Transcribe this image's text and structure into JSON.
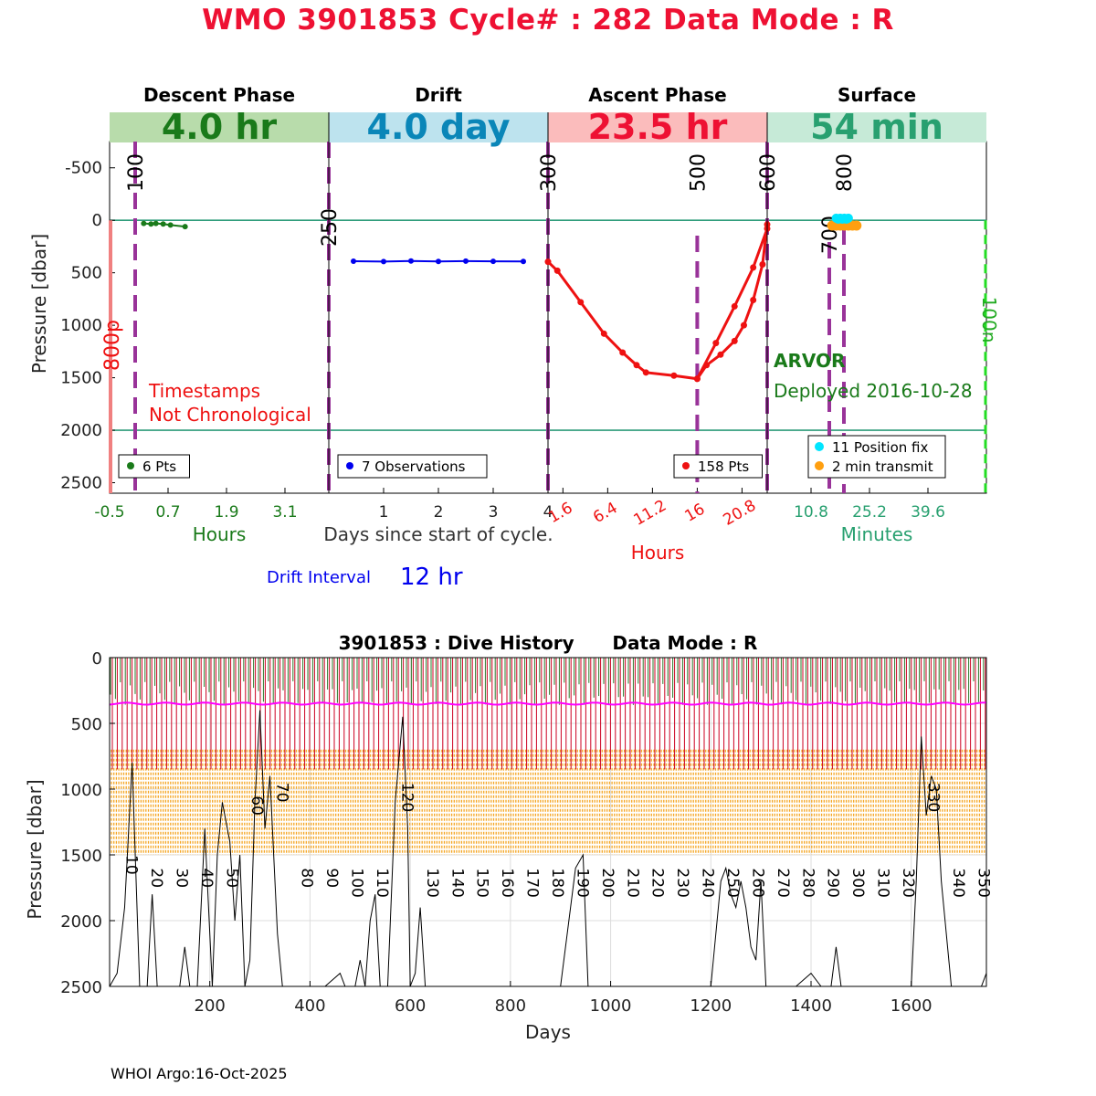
{
  "title": "WMO 3901853   Cycle# : 282   Data Mode : R",
  "footer": "WHOI Argo:16-Oct-2025",
  "colors": {
    "descent": "#1a7a1a",
    "descent_band": "#b8dcab",
    "drift": "#0000ee",
    "drift_title": "#0a86b8",
    "drift_band": "#bde3ee",
    "ascent": "#ee1111",
    "ascent_title": "#ee1133",
    "ascent_band": "#fbbcbc",
    "surface": "#28a070",
    "surface_band": "#c6ead7",
    "marker_purple": "#993399",
    "position": "#00e5ff",
    "transmit": "#ff9f10",
    "history_red": "#cc0022",
    "history_orange": "#f5a623",
    "history_green": "#2a7a2a",
    "history_magenta": "#ff00ff"
  },
  "chart_data": [
    {
      "type": "line",
      "name": "cycle-profile",
      "ylabel": "Pressure [dbar]",
      "ylim": [
        2600,
        -750
      ],
      "yticks": [
        -500,
        0,
        500,
        1000,
        1500,
        2000,
        2500
      ],
      "reference_lines": [
        0,
        2000
      ],
      "panels": [
        {
          "key": "descent",
          "title": "Descent Phase",
          "duration": "4.0 hr",
          "xlim": [
            -0.5,
            4.0
          ],
          "ticks": [
            "-0.5",
            "0.7",
            "1.9",
            "3.1"
          ],
          "tick_values": [
            -0.5,
            0.7,
            1.9,
            3.1
          ],
          "xlabel": "Hours",
          "legend": [
            "6 Pts"
          ],
          "series": [
            {
              "x": [
                0.2,
                0.35,
                0.45,
                0.6,
                0.75,
                1.05
              ],
              "y": [
                30,
                35,
                30,
                35,
                45,
                60
              ]
            }
          ],
          "markers": [
            {
              "label": "100",
              "x": 0.0
            },
            {
              "label": "250",
              "x": 4.0
            }
          ],
          "annotations": [
            "Timestamps",
            "Not Chronological"
          ]
        },
        {
          "key": "drift",
          "title": "Drift",
          "duration": "4.0 day",
          "xlim": [
            0.0,
            4.0
          ],
          "ticks": [
            "1",
            "2",
            "3",
            "4"
          ],
          "tick_values": [
            1,
            2,
            3,
            4
          ],
          "xlabel": "Days since start of cycle.",
          "legend": [
            "7 Observations"
          ],
          "series": [
            {
              "x": [
                0.45,
                1.0,
                1.5,
                2.0,
                2.5,
                3.0,
                3.55
              ],
              "y": [
                390,
                393,
                388,
                392,
                389,
                391,
                392
              ]
            }
          ],
          "markers": [
            {
              "label": "300",
              "x": 4.0
            }
          ],
          "drift_interval_label": "Drift Interval",
          "drift_interval_value": "12 hr"
        },
        {
          "key": "ascent",
          "title": "Ascent Phase",
          "duration": "23.5 hr",
          "xlim": [
            0.0,
            23.5
          ],
          "ticks": [
            "1.6",
            "6.4",
            "11.2",
            "16",
            "20.8"
          ],
          "tick_values": [
            1.6,
            6.4,
            11.2,
            16,
            20.8
          ],
          "xlabel": "Hours",
          "legend": [
            "158 Pts"
          ],
          "series": [
            {
              "x": [
                0.0,
                1.0,
                3.5,
                6.0,
                8.0,
                9.5,
                10.5,
                13.5,
                16.0,
                17.0,
                18.5,
                20.0,
                21.0,
                22.0,
                23.0,
                23.5
              ],
              "y": [
                395,
                480,
                780,
                1080,
                1260,
                1380,
                1450,
                1480,
                1510,
                1380,
                1280,
                1150,
                1000,
                760,
                420,
                40
              ]
            },
            {
              "x": [
                16.0,
                18.0,
                20.0,
                22.0,
                23.5
              ],
              "y": [
                1510,
                1170,
                820,
                450,
                80
              ]
            }
          ],
          "markers": [
            {
              "label": "500",
              "x": 16.0
            },
            {
              "label": "600",
              "x": 23.5
            }
          ]
        },
        {
          "key": "surface",
          "title": "Surface",
          "duration": "54 min",
          "xlim": [
            0.0,
            54.0
          ],
          "ticks": [
            "10.8",
            "25.2",
            "39.6"
          ],
          "tick_values": [
            10.8,
            25.2,
            39.6
          ],
          "xlabel": "Minutes",
          "legend": [
            "11 Position fix",
            "2 min transmit"
          ],
          "position_fix": {
            "x": [
              17.0,
              17.5,
              18.0,
              18.5,
              19.0,
              19.5,
              20.0
            ],
            "y": [
              -20,
              -10,
              -20,
              -10,
              -20,
              -10,
              -20
            ]
          },
          "transmit": {
            "x": [
              16.0,
              17.0,
              18.0,
              19.0,
              20.0,
              21.0,
              22.0
            ],
            "y": [
              50,
              50,
              50,
              50,
              50,
              50,
              50
            ]
          },
          "markers": [
            {
              "label": "800",
              "x": 19.5
            },
            {
              "label": "700",
              "x": 15.5
            }
          ],
          "float_type": "ARVOR",
          "deployed": "Deployed 2016-10-28"
        }
      ],
      "side_labels": {
        "left": "800p",
        "right": "100n"
      }
    },
    {
      "type": "line",
      "name": "dive-history",
      "title": "3901853 : Dive History      Data Mode : R",
      "xlabel": "Days",
      "ylabel": "Pressure [dbar]",
      "xlim": [
        0,
        1750
      ],
      "ylim": [
        2500,
        0
      ],
      "xticks": [
        200,
        400,
        600,
        800,
        1000,
        1200,
        1400,
        1600
      ],
      "yticks": [
        0,
        500,
        1000,
        1500,
        2000,
        2500
      ],
      "park_pressure": 350,
      "orange_band": [
        700,
        1500
      ],
      "cycle_labels": [
        "10",
        "20",
        "30",
        "40",
        "50",
        "60",
        "70",
        "80",
        "90",
        "100",
        "110",
        "120",
        "130",
        "140",
        "150",
        "160",
        "170",
        "180",
        "190",
        "200",
        "210",
        "220",
        "230",
        "240",
        "250",
        "260",
        "270",
        "280",
        "290",
        "300",
        "310",
        "320",
        "330",
        "340",
        "350"
      ],
      "cycle_label_days": [
        45,
        95,
        145,
        195,
        245,
        295,
        345,
        395,
        445,
        495,
        545,
        595,
        645,
        695,
        745,
        795,
        845,
        895,
        945,
        995,
        1045,
        1095,
        1145,
        1195,
        1245,
        1295,
        1345,
        1395,
        1445,
        1495,
        1545,
        1595,
        1645,
        1695,
        1745
      ],
      "cycle_label_depths": [
        1500,
        1600,
        1600,
        1600,
        1600,
        1050,
        950,
        1600,
        1600,
        1600,
        1600,
        950,
        1600,
        1600,
        1600,
        1600,
        1600,
        1600,
        1600,
        1600,
        1600,
        1600,
        1600,
        1600,
        1600,
        1600,
        1600,
        1600,
        1600,
        1600,
        1600,
        1600,
        950,
        1600,
        1600
      ],
      "deep_profile": {
        "x": [
          0,
          15,
          30,
          45,
          60,
          75,
          85,
          95,
          110,
          125,
          140,
          150,
          160,
          175,
          190,
          205,
          215,
          225,
          240,
          250,
          260,
          270,
          280,
          290,
          300,
          310,
          320,
          335,
          345,
          360,
          380,
          400,
          430,
          460,
          470,
          490,
          500,
          510,
          520,
          530,
          540,
          555,
          570,
          585,
          595,
          600,
          610,
          620,
          630,
          640,
          660,
          680,
          700,
          720,
          760,
          800,
          850,
          900,
          930,
          945,
          955,
          965,
          980,
          1000,
          1050,
          1100,
          1150,
          1190,
          1200,
          1210,
          1220,
          1230,
          1240,
          1250,
          1260,
          1270,
          1280,
          1290,
          1300,
          1310,
          1320,
          1330,
          1340,
          1350,
          1370,
          1400,
          1420,
          1440,
          1450,
          1460,
          1470,
          1480,
          1500,
          1550,
          1600,
          1610,
          1620,
          1630,
          1640,
          1650,
          1660,
          1670,
          1680,
          1700,
          1720,
          1740,
          1750
        ],
        "y": [
          2500,
          2400,
          1900,
          800,
          2500,
          2500,
          1800,
          2500,
          2500,
          2500,
          2500,
          2200,
          2500,
          2500,
          1300,
          2500,
          1500,
          1100,
          1400,
          2000,
          1500,
          2500,
          2300,
          1100,
          400,
          1300,
          900,
          2100,
          2500,
          2500,
          2500,
          2500,
          2500,
          2400,
          2500,
          2500,
          2300,
          2500,
          2000,
          1800,
          2500,
          2500,
          1100,
          450,
          1300,
          2500,
          2400,
          1900,
          2500,
          2500,
          2500,
          2500,
          2500,
          2500,
          2500,
          2500,
          2500,
          2500,
          1600,
          1500,
          2500,
          2500,
          2500,
          2500,
          2500,
          2500,
          2500,
          2500,
          2500,
          2100,
          1700,
          1600,
          1800,
          1900,
          1700,
          1900,
          2200,
          2300,
          1700,
          2500,
          2500,
          2500,
          2500,
          2500,
          2500,
          2400,
          2500,
          2500,
          2200,
          2500,
          2500,
          2500,
          2500,
          2500,
          2500,
          1700,
          600,
          1200,
          900,
          1000,
          1700,
          2100,
          2500,
          2500,
          2500,
          2500,
          2400
        ]
      }
    }
  ]
}
